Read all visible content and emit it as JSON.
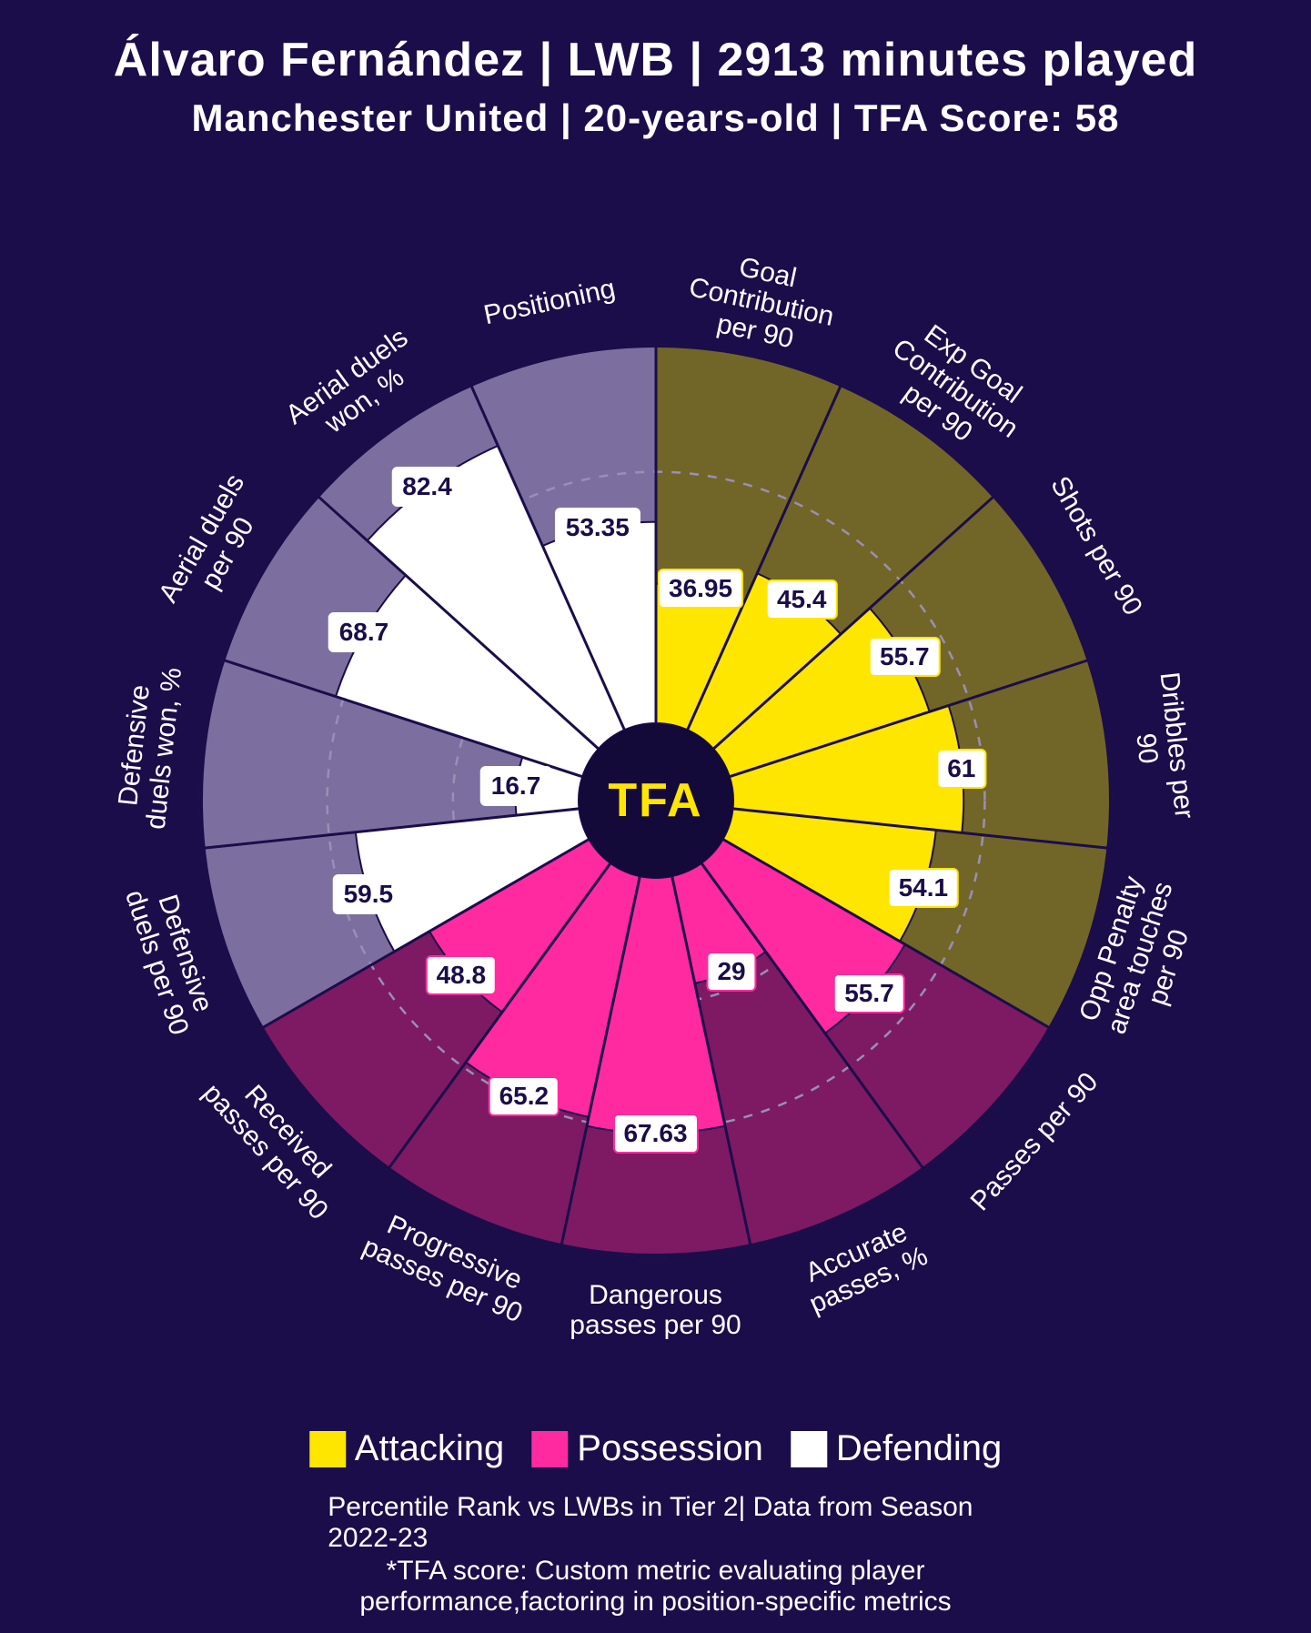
{
  "colors": {
    "background": "#1b0d4a",
    "text": "#ffffff",
    "center_logo_bg": "#140a3a",
    "center_logo_text": "#ffe600",
    "grid_line": "#9a8fb5",
    "attacking_fill": "#ffe600",
    "attacking_bg": "#716628",
    "possession_fill": "#ff2aa0",
    "possession_bg": "#7d1a63",
    "defending_fill": "#ffffff",
    "defending_bg": "#7c6fa0"
  },
  "header": {
    "title_parts": [
      "Álvaro Fernández",
      "LWB",
      "2913 minutes played"
    ],
    "subtitle_parts": [
      "Manchester United",
      "20-years-old",
      "TFA Score: 58"
    ]
  },
  "chart": {
    "type": "polar-bar",
    "inner_radius": 85,
    "outer_radius": 500,
    "label_radius": 560,
    "grid_circles": [
      33.3,
      66.6,
      100
    ],
    "center_text": "TFA",
    "title_fontsize": 52,
    "subtitle_fontsize": 42,
    "label_fontsize": 30,
    "value_fontsize": 28,
    "legend_fontsize": 40,
    "footnote_fontsize": 30
  },
  "metrics": [
    {
      "label": "Goal Contribution per 90",
      "value": 36.95,
      "category": "attacking"
    },
    {
      "label": "Exp Goal Contribution per 90",
      "value": 45.4,
      "category": "attacking"
    },
    {
      "label": "Shots per 90",
      "value": 55.7,
      "category": "attacking"
    },
    {
      "label": "Dribbles per 90",
      "value": 61.0,
      "category": "attacking"
    },
    {
      "label": "Opp Penalty area touches per 90",
      "value": 54.1,
      "category": "attacking"
    },
    {
      "label": "Passes per 90",
      "value": 55.7,
      "category": "possession"
    },
    {
      "label": "Accurate passes, %",
      "value": 29.0,
      "category": "possession"
    },
    {
      "label": "Dangerous passes per 90",
      "value": 67.63,
      "category": "possession"
    },
    {
      "label": "Progressive passes per 90",
      "value": 65.2,
      "category": "possession"
    },
    {
      "label": "Received passes per 90",
      "value": 48.8,
      "category": "possession"
    },
    {
      "label": "Defensive duels per 90",
      "value": 59.5,
      "category": "defending"
    },
    {
      "label": "Defensive duels won, %",
      "value": 16.7,
      "category": "defending"
    },
    {
      "label": "Aerial duels per 90",
      "value": 68.7,
      "category": "defending"
    },
    {
      "label": "Aerial duels won, %",
      "value": 82.4,
      "category": "defending"
    },
    {
      "label": "Positioning",
      "value": 53.35,
      "category": "defending"
    }
  ],
  "legend": [
    {
      "label": "Attacking",
      "category": "attacking"
    },
    {
      "label": "Possession",
      "category": "possession"
    },
    {
      "label": "Defending",
      "category": "defending"
    }
  ],
  "footnotes": {
    "line1": "Percentile Rank vs LWBs in Tier 2| Data from Season 2022-23",
    "line2": "*TFA score: Custom metric evaluating player performance,factoring in position-specific metrics"
  }
}
